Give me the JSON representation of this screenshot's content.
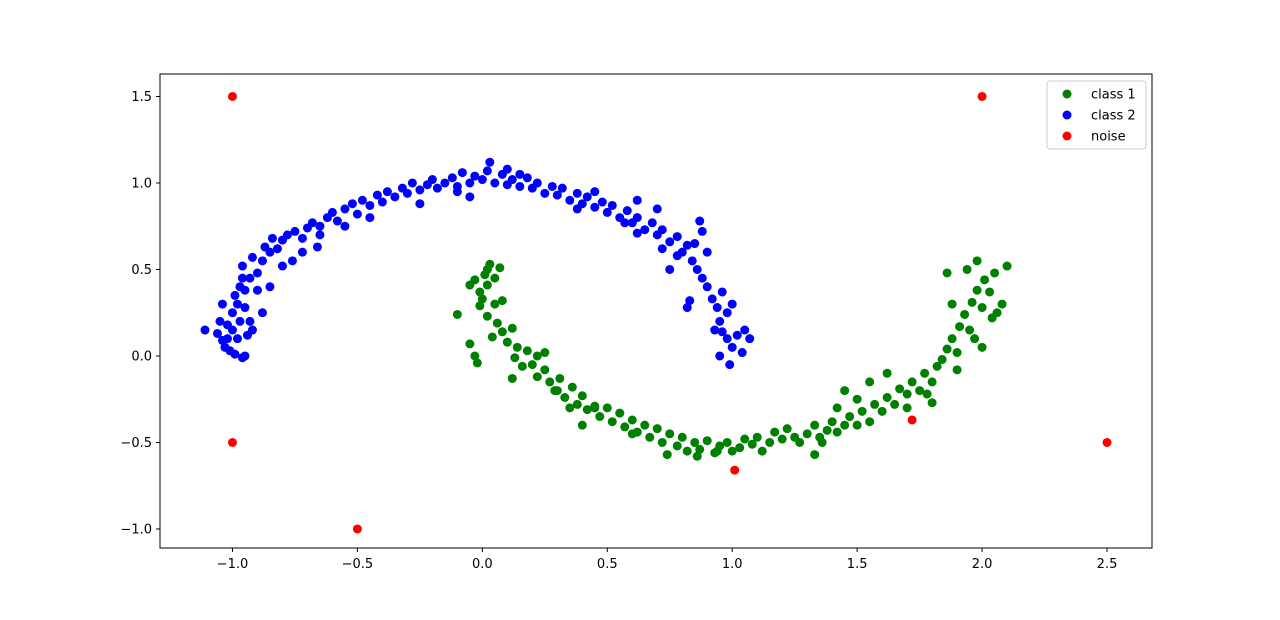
{
  "chart_data": {
    "type": "scatter",
    "title": "",
    "xlabel": "",
    "ylabel": "",
    "xlim": [
      -1.29,
      2.68
    ],
    "ylim": [
      -1.11,
      1.63
    ],
    "xticks": [
      -1.0,
      -0.5,
      0.0,
      0.5,
      1.0,
      1.5,
      2.0,
      2.5
    ],
    "xtick_labels": [
      "−1.0",
      "−0.5",
      "0.0",
      "0.5",
      "1.0",
      "1.5",
      "2.0",
      "2.5"
    ],
    "yticks": [
      -1.0,
      -0.5,
      0.0,
      0.5,
      1.0,
      1.5
    ],
    "ytick_labels": [
      "−1.0",
      "−0.5",
      "0.0",
      "0.5",
      "1.0",
      "1.5"
    ],
    "grid": false,
    "legend_position": "top-right",
    "series": [
      {
        "name": "class 1",
        "color": "#008000",
        "points": [
          [
            -0.1,
            0.24
          ],
          [
            -0.05,
            0.07
          ],
          [
            -0.03,
            0
          ],
          [
            -0.02,
            -0.04
          ],
          [
            -0.05,
            0.41
          ],
          [
            -0.03,
            0.44
          ],
          [
            -0.01,
            0.37
          ],
          [
            0,
            0.33
          ],
          [
            0.01,
            0.47
          ],
          [
            0.02,
            0.5
          ],
          [
            0.03,
            0.53
          ],
          [
            0.05,
            0.45
          ],
          [
            0.07,
            0.51
          ],
          [
            0.02,
            0.41
          ],
          [
            -0.01,
            0.29
          ],
          [
            0.02,
            0.23
          ],
          [
            0.05,
            0.3
          ],
          [
            0.08,
            0.32
          ],
          [
            0.06,
            0.19
          ],
          [
            0.04,
            0.11
          ],
          [
            0.08,
            0.14
          ],
          [
            0.1,
            0.08
          ],
          [
            0.12,
            0.16
          ],
          [
            0.14,
            0.05
          ],
          [
            0.13,
            -0.01
          ],
          [
            0.16,
            -0.06
          ],
          [
            0.18,
            0.03
          ],
          [
            0.2,
            -0.05
          ],
          [
            0.22,
            -0.12
          ],
          [
            0.25,
            -0.08
          ],
          [
            0.27,
            -0.15
          ],
          [
            0.29,
            -0.2
          ],
          [
            0.31,
            -0.13
          ],
          [
            0.33,
            -0.24
          ],
          [
            0.36,
            -0.18
          ],
          [
            0.38,
            -0.28
          ],
          [
            0.4,
            -0.23
          ],
          [
            0.42,
            -0.31
          ],
          [
            0.45,
            -0.29
          ],
          [
            0.47,
            -0.35
          ],
          [
            0.5,
            -0.3
          ],
          [
            0.52,
            -0.38
          ],
          [
            0.55,
            -0.33
          ],
          [
            0.57,
            -0.41
          ],
          [
            0.6,
            -0.37
          ],
          [
            0.62,
            -0.44
          ],
          [
            0.65,
            -0.4
          ],
          [
            0.67,
            -0.47
          ],
          [
            0.7,
            -0.42
          ],
          [
            0.72,
            -0.5
          ],
          [
            0.75,
            -0.45
          ],
          [
            0.78,
            -0.52
          ],
          [
            0.8,
            -0.47
          ],
          [
            0.82,
            -0.55
          ],
          [
            0.85,
            -0.5
          ],
          [
            0.87,
            -0.54
          ],
          [
            0.9,
            -0.49
          ],
          [
            0.93,
            -0.56
          ],
          [
            0.95,
            -0.52
          ],
          [
            0.98,
            -0.5
          ],
          [
            1.0,
            -0.55
          ],
          [
            1.03,
            -0.53
          ],
          [
            1.05,
            -0.48
          ],
          [
            1.08,
            -0.51
          ],
          [
            1.1,
            -0.47
          ],
          [
            1.12,
            -0.55
          ],
          [
            1.15,
            -0.5
          ],
          [
            1.17,
            -0.44
          ],
          [
            1.2,
            -0.48
          ],
          [
            1.22,
            -0.42
          ],
          [
            1.25,
            -0.47
          ],
          [
            1.27,
            -0.5
          ],
          [
            1.3,
            -0.45
          ],
          [
            1.33,
            -0.4
          ],
          [
            1.35,
            -0.47
          ],
          [
            1.38,
            -0.43
          ],
          [
            1.4,
            -0.38
          ],
          [
            1.42,
            -0.44
          ],
          [
            1.45,
            -0.4
          ],
          [
            1.47,
            -0.35
          ],
          [
            1.5,
            -0.4
          ],
          [
            1.52,
            -0.32
          ],
          [
            1.55,
            -0.38
          ],
          [
            1.57,
            -0.28
          ],
          [
            1.6,
            -0.32
          ],
          [
            1.62,
            -0.24
          ],
          [
            1.65,
            -0.28
          ],
          [
            1.67,
            -0.19
          ],
          [
            1.7,
            -0.22
          ],
          [
            1.72,
            -0.15
          ],
          [
            1.75,
            -0.2
          ],
          [
            1.77,
            -0.1
          ],
          [
            1.8,
            -0.15
          ],
          [
            1.82,
            -0.06
          ],
          [
            1.84,
            -0.02
          ],
          [
            1.86,
            0.04
          ],
          [
            1.88,
            0.1
          ],
          [
            1.9,
            0.02
          ],
          [
            1.91,
            0.17
          ],
          [
            1.93,
            0.24
          ],
          [
            1.95,
            0.15
          ],
          [
            1.96,
            0.31
          ],
          [
            1.98,
            0.38
          ],
          [
            2.0,
            0.28
          ],
          [
            2.01,
            0.44
          ],
          [
            2.03,
            0.37
          ],
          [
            2.04,
            0.22
          ],
          [
            1.94,
            0.5
          ],
          [
            1.98,
            0.55
          ],
          [
            2.05,
            0.48
          ],
          [
            2.08,
            0.3
          ],
          [
            2.1,
            0.52
          ],
          [
            1.88,
            0.3
          ],
          [
            1.86,
            0.48
          ],
          [
            1.78,
            -0.22
          ],
          [
            1.8,
            -0.27
          ],
          [
            1.62,
            -0.1
          ],
          [
            1.55,
            -0.15
          ],
          [
            1.45,
            -0.2
          ],
          [
            1.36,
            -0.5
          ],
          [
            1.33,
            -0.57
          ],
          [
            0.94,
            -0.55
          ],
          [
            0.74,
            -0.57
          ],
          [
            0.86,
            -0.58
          ],
          [
            0.3,
            -0.2
          ],
          [
            0.22,
            0.0
          ],
          [
            0.12,
            -0.13
          ],
          [
            0.25,
            0.02
          ],
          [
            0.6,
            -0.45
          ],
          [
            0.45,
            -0.3
          ],
          [
            0.35,
            -0.3
          ],
          [
            0.4,
            -0.4
          ],
          [
            1.9,
            -0.08
          ],
          [
            1.97,
            0.1
          ],
          [
            2.06,
            0.25
          ],
          [
            2.0,
            0.05
          ],
          [
            1.7,
            -0.3
          ],
          [
            1.5,
            -0.25
          ],
          [
            1.42,
            -0.3
          ]
        ]
      },
      {
        "name": "class 2",
        "color": "#0000ff",
        "points": [
          [
            -1.11,
            0.15
          ],
          [
            -1.06,
            0.13
          ],
          [
            -1.04,
            0.09
          ],
          [
            -1.05,
            0.2
          ],
          [
            -1.03,
            0.05
          ],
          [
            -1.01,
            0.03
          ],
          [
            -0.99,
            0.01
          ],
          [
            -0.96,
            -0.01
          ],
          [
            -0.95,
            0.0
          ],
          [
            -0.98,
            0.1
          ],
          [
            -1.0,
            0.15
          ],
          [
            -1.02,
            0.18
          ],
          [
            -0.97,
            0.2
          ],
          [
            -1.0,
            0.25
          ],
          [
            -0.98,
            0.3
          ],
          [
            -0.95,
            0.28
          ],
          [
            -0.99,
            0.35
          ],
          [
            -0.97,
            0.4
          ],
          [
            -0.95,
            0.38
          ],
          [
            -0.93,
            0.45
          ],
          [
            -0.96,
            0.52
          ],
          [
            -0.9,
            0.48
          ],
          [
            -0.88,
            0.55
          ],
          [
            -0.92,
            0.57
          ],
          [
            -0.85,
            0.6
          ],
          [
            -0.87,
            0.63
          ],
          [
            -0.82,
            0.62
          ],
          [
            -0.8,
            0.67
          ],
          [
            -0.84,
            0.68
          ],
          [
            -0.78,
            0.7
          ],
          [
            -0.75,
            0.72
          ],
          [
            -0.72,
            0.68
          ],
          [
            -0.7,
            0.74
          ],
          [
            -0.68,
            0.77
          ],
          [
            -0.65,
            0.75
          ],
          [
            -0.62,
            0.8
          ],
          [
            -0.6,
            0.83
          ],
          [
            -0.58,
            0.78
          ],
          [
            -0.55,
            0.85
          ],
          [
            -0.52,
            0.88
          ],
          [
            -0.5,
            0.82
          ],
          [
            -0.48,
            0.9
          ],
          [
            -0.45,
            0.87
          ],
          [
            -0.42,
            0.93
          ],
          [
            -0.4,
            0.89
          ],
          [
            -0.38,
            0.95
          ],
          [
            -0.35,
            0.92
          ],
          [
            -0.32,
            0.97
          ],
          [
            -0.3,
            0.94
          ],
          [
            -0.28,
            1.0
          ],
          [
            -0.25,
            0.96
          ],
          [
            -0.22,
            0.99
          ],
          [
            -0.2,
            1.02
          ],
          [
            -0.18,
            0.97
          ],
          [
            -0.15,
            1.0
          ],
          [
            -0.12,
            1.03
          ],
          [
            -0.1,
            0.98
          ],
          [
            -0.08,
            1.06
          ],
          [
            -0.05,
            1.0
          ],
          [
            -0.03,
            1.04
          ],
          [
            0.0,
            1.02
          ],
          [
            0.02,
            1.07
          ],
          [
            0.03,
            1.12
          ],
          [
            0.05,
            1.0
          ],
          [
            0.08,
            1.05
          ],
          [
            0.1,
            0.99
          ],
          [
            0.12,
            1.02
          ],
          [
            0.15,
            0.98
          ],
          [
            0.18,
            1.03
          ],
          [
            0.2,
            0.97
          ],
          [
            0.22,
            1.0
          ],
          [
            0.25,
            0.94
          ],
          [
            0.28,
            0.98
          ],
          [
            0.3,
            0.93
          ],
          [
            0.32,
            0.97
          ],
          [
            0.35,
            0.9
          ],
          [
            0.38,
            0.94
          ],
          [
            0.4,
            0.88
          ],
          [
            0.42,
            0.92
          ],
          [
            0.45,
            0.86
          ],
          [
            0.48,
            0.89
          ],
          [
            0.5,
            0.83
          ],
          [
            0.52,
            0.87
          ],
          [
            0.55,
            0.8
          ],
          [
            0.58,
            0.84
          ],
          [
            0.6,
            0.77
          ],
          [
            0.62,
            0.8
          ],
          [
            0.65,
            0.73
          ],
          [
            0.68,
            0.77
          ],
          [
            0.7,
            0.7
          ],
          [
            0.72,
            0.73
          ],
          [
            0.75,
            0.66
          ],
          [
            0.78,
            0.69
          ],
          [
            0.8,
            0.6
          ],
          [
            0.82,
            0.64
          ],
          [
            0.84,
            0.55
          ],
          [
            0.86,
            0.5
          ],
          [
            0.88,
            0.45
          ],
          [
            0.9,
            0.4
          ],
          [
            0.92,
            0.33
          ],
          [
            0.94,
            0.28
          ],
          [
            0.95,
            0.2
          ],
          [
            0.96,
            0.14
          ],
          [
            0.98,
            0.1
          ],
          [
            1.0,
            0.05
          ],
          [
            1.02,
            0.12
          ],
          [
            1.04,
            0.02
          ],
          [
            0.99,
            -0.05
          ],
          [
            0.95,
            0.0
          ],
          [
            0.93,
            0.15
          ],
          [
            1.05,
            0.15
          ],
          [
            1.07,
            0.1
          ],
          [
            0.98,
            0.25
          ],
          [
            1.0,
            0.3
          ],
          [
            0.96,
            0.37
          ],
          [
            0.9,
            0.6
          ],
          [
            0.88,
            0.72
          ],
          [
            0.87,
            0.78
          ],
          [
            0.83,
            0.32
          ],
          [
            0.82,
            0.28
          ],
          [
            0.75,
            0.5
          ],
          [
            0.72,
            0.62
          ],
          [
            0.62,
            0.71
          ],
          [
            0.57,
            0.77
          ],
          [
            0.38,
            0.85
          ],
          [
            0.1,
            1.08
          ],
          [
            0.15,
            1.05
          ],
          [
            -0.1,
            0.95
          ],
          [
            -0.55,
            0.75
          ],
          [
            -0.66,
            0.63
          ],
          [
            -0.72,
            0.6
          ],
          [
            -0.8,
            0.52
          ],
          [
            -0.9,
            0.38
          ],
          [
            -0.96,
            0.45
          ],
          [
            -0.88,
            0.25
          ],
          [
            -0.92,
            0.15
          ],
          [
            -0.94,
            0.12
          ],
          [
            -1.04,
            0.3
          ],
          [
            -1.02,
            0.1
          ],
          [
            -0.93,
            0.2
          ],
          [
            -0.85,
            0.4
          ],
          [
            -0.76,
            0.55
          ],
          [
            -0.65,
            0.7
          ],
          [
            -0.45,
            0.8
          ],
          [
            -0.25,
            0.88
          ],
          [
            -0.05,
            0.92
          ],
          [
            0.45,
            0.95
          ],
          [
            0.62,
            0.9
          ],
          [
            0.7,
            0.85
          ],
          [
            0.78,
            0.58
          ],
          [
            0.85,
            0.65
          ]
        ]
      },
      {
        "name": "noise",
        "color": "#ff0000",
        "points": [
          [
            -1.0,
            1.5
          ],
          [
            2.0,
            1.5
          ],
          [
            -1.0,
            -0.5
          ],
          [
            2.5,
            -0.5
          ],
          [
            -0.5,
            -1.0
          ],
          [
            1.01,
            -0.66
          ],
          [
            1.72,
            -0.37
          ]
        ]
      }
    ]
  }
}
